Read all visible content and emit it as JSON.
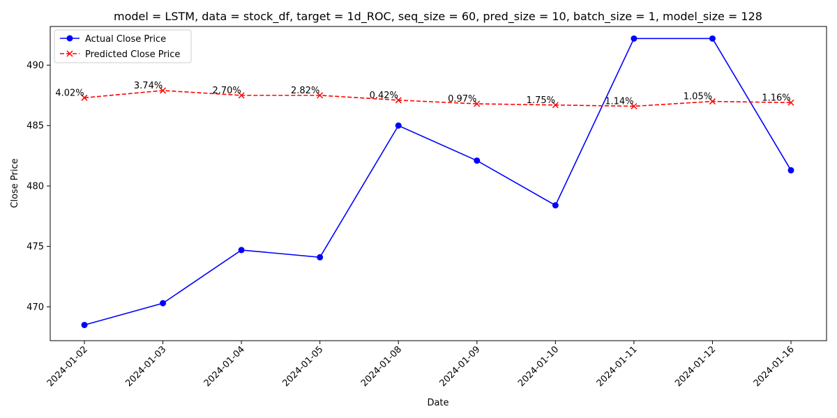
{
  "chart_data": {
    "type": "line",
    "title": "model = LSTM, data = stock_df, target = 1d_ROC, seq_size = 60, pred_size = 10, batch_size = 1, model_size = 128",
    "xlabel": "Date",
    "ylabel": "Close Price",
    "categories": [
      "2024-01-02",
      "2024-01-03",
      "2024-01-04",
      "2024-01-05",
      "2024-01-08",
      "2024-01-09",
      "2024-01-10",
      "2024-01-11",
      "2024-01-12",
      "2024-01-16"
    ],
    "yticks": [
      470,
      475,
      480,
      485,
      490
    ],
    "ylim": [
      467.2,
      493.2
    ],
    "grid": false,
    "legend_position": "top-left",
    "series": [
      {
        "name": "Actual Close Price",
        "color": "#0000ff",
        "marker": "circle",
        "line_style": "solid",
        "values": [
          468.5,
          470.3,
          474.7,
          474.1,
          485.0,
          482.1,
          478.4,
          492.2,
          492.2,
          481.3
        ]
      },
      {
        "name": "Predicted Close Price",
        "color": "#ff0000",
        "marker": "x",
        "line_style": "dashed",
        "values": [
          487.3,
          487.9,
          487.5,
          487.5,
          487.1,
          486.8,
          486.7,
          486.6,
          487.0,
          486.9
        ],
        "data_labels": [
          "4.02%",
          "3.74%",
          "2.70%",
          "2.82%",
          "0.42%",
          "0.97%",
          "1.75%",
          "1.14%",
          "1.05%",
          "1.16%"
        ]
      }
    ]
  }
}
